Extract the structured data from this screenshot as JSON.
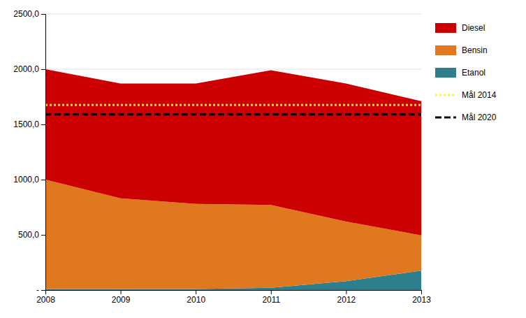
{
  "chart_data": {
    "type": "area",
    "stacked": true,
    "x": [
      2008,
      2009,
      2010,
      2011,
      2012,
      2013
    ],
    "series": [
      {
        "name": "Etanol",
        "type": "area",
        "color": "#2e7f8c",
        "values": [
          10,
          10,
          10,
          20,
          80,
          175
        ]
      },
      {
        "name": "Bensin",
        "type": "area",
        "color": "#e07820",
        "values": [
          990,
          820,
          770,
          750,
          540,
          320
        ]
      },
      {
        "name": "Diesel",
        "type": "area",
        "color": "#cc0000",
        "values": [
          1000,
          1040,
          1090,
          1220,
          1250,
          1215
        ]
      },
      {
        "name": "Mål 2014",
        "type": "line",
        "color": "#ffff00",
        "line_style": "dotted",
        "values": [
          1675,
          1675,
          1675,
          1675,
          1675,
          1675
        ]
      },
      {
        "name": "Mål 2020",
        "type": "line",
        "color": "#000000",
        "line_style": "dashed",
        "values": [
          1590,
          1590,
          1590,
          1590,
          1590,
          1590
        ]
      }
    ],
    "xlim": [
      2008,
      2013
    ],
    "xticks": [
      2008,
      2009,
      2010,
      2011,
      2012,
      2013
    ],
    "ylim": [
      0,
      2500
    ],
    "yticks": [
      {
        "value": 0,
        "label": "-"
      },
      {
        "value": 500,
        "label": "500,0"
      },
      {
        "value": 1000,
        "label": "1000,0"
      },
      {
        "value": 1500,
        "label": "1500,0"
      },
      {
        "value": 2000,
        "label": "2000,0"
      },
      {
        "value": 2500,
        "label": "2500,0"
      }
    ],
    "grid": "y",
    "legend": "right"
  }
}
